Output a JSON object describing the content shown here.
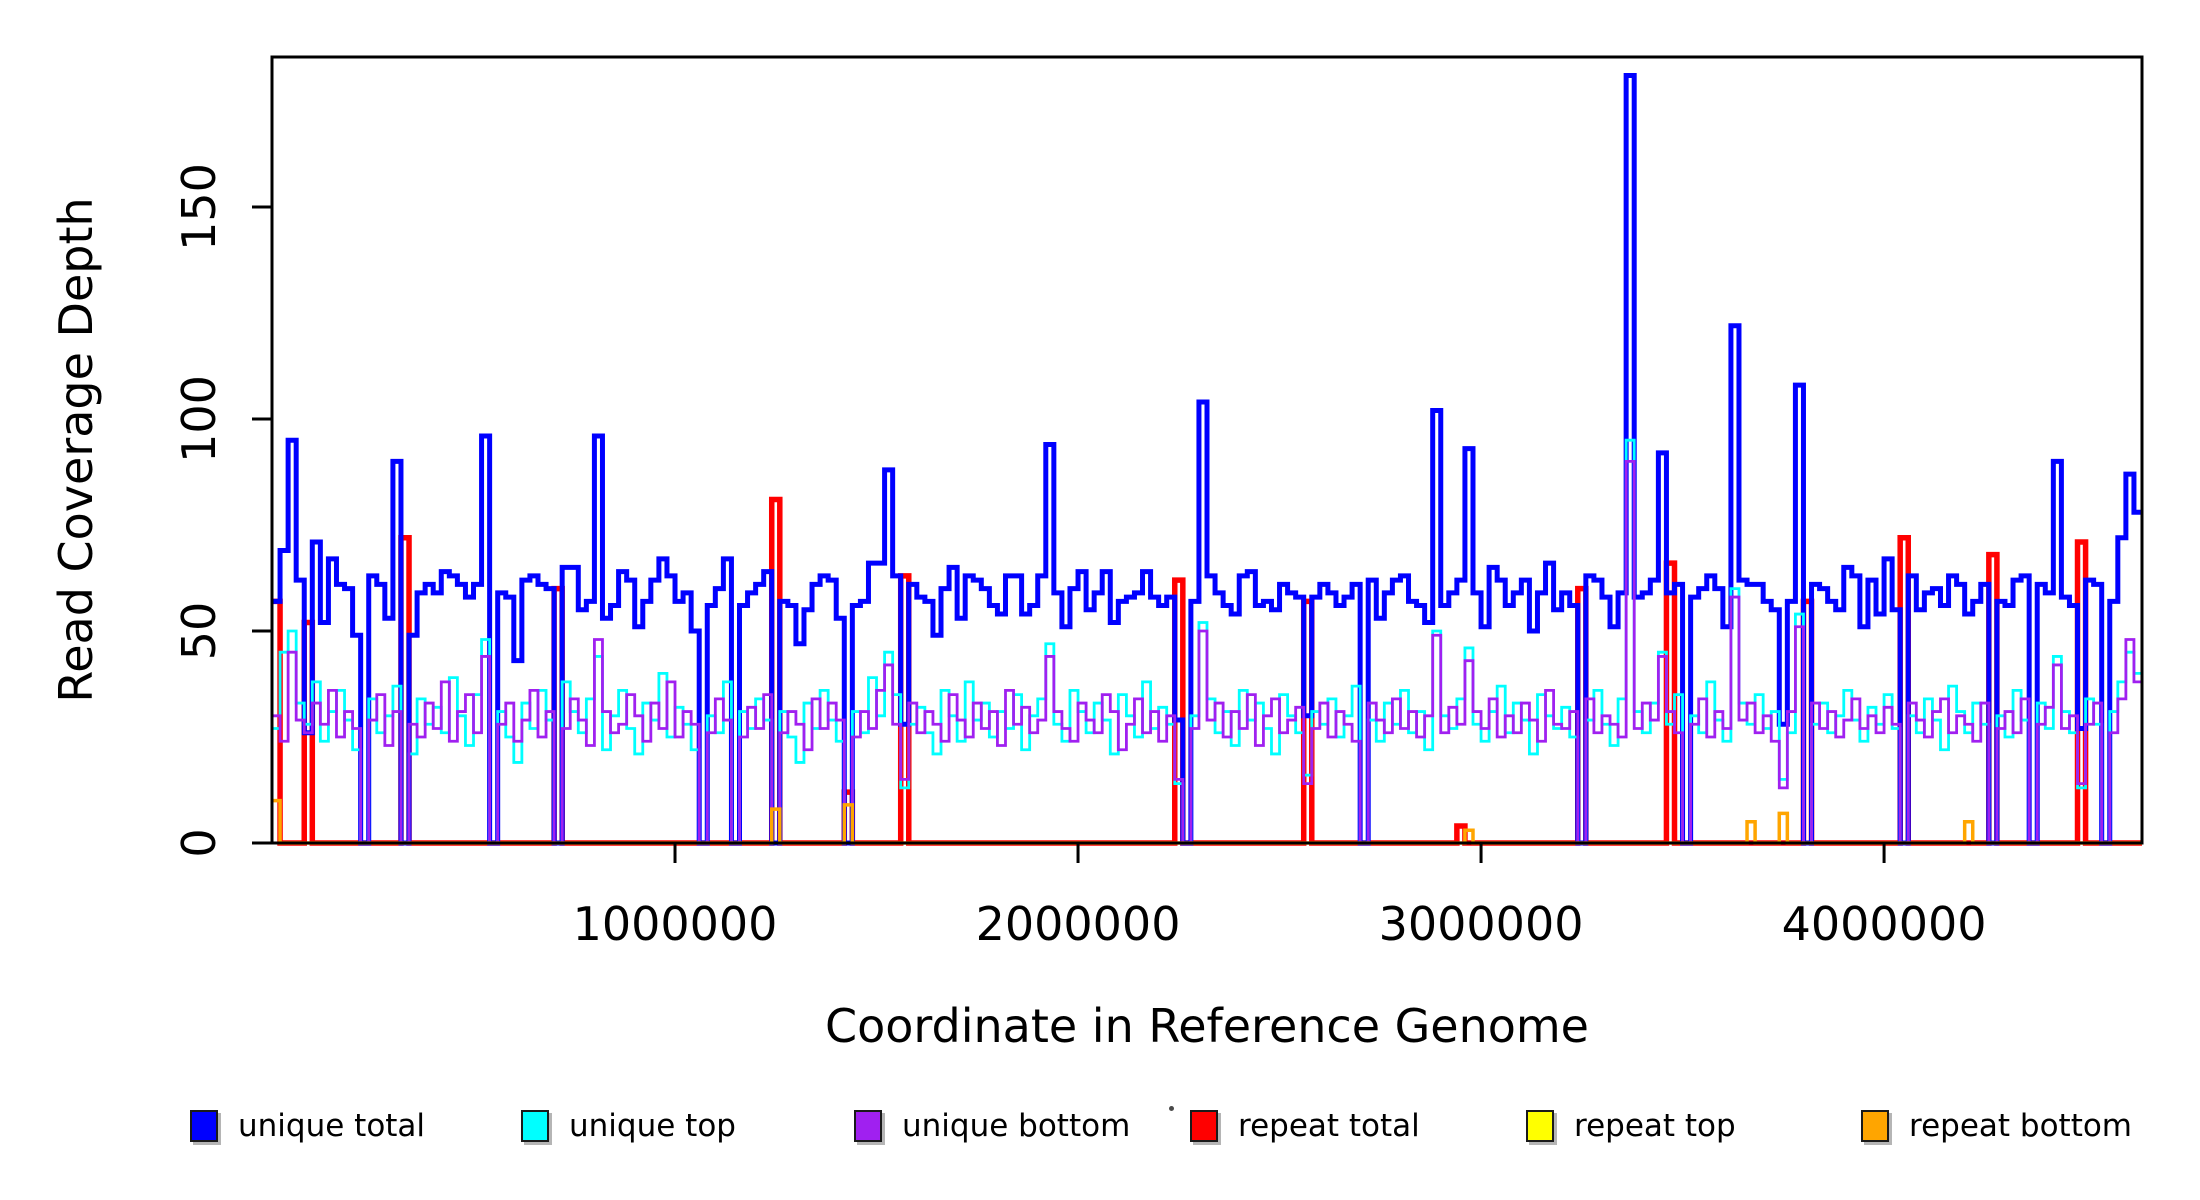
{
  "page": {
    "background": "#ffffff"
  },
  "chart_data": {
    "type": "line",
    "subtype": "step",
    "title": "",
    "xlabel": "Coordinate in Reference Genome",
    "ylabel": "Read Coverage Depth",
    "xlim": [
      0,
      4640000
    ],
    "ylim": [
      0,
      185
    ],
    "x_ticks": [
      1000000,
      2000000,
      3000000,
      4000000
    ],
    "y_ticks": [
      0,
      50,
      100,
      150
    ],
    "grid": false,
    "legend_position": "bottom",
    "axis_color": "#000000",
    "bin_size": 20000,
    "n_bins": 232,
    "series": [
      {
        "name": "repeat total",
        "color": "#FF0000",
        "line_width": 5.5,
        "default": 0,
        "values_sparse": {
          "0": 57,
          "4": 52,
          "16": 72,
          "35": 60,
          "62": 81,
          "71": 12,
          "78": 63,
          "112": 62,
          "128": 57,
          "147": 4,
          "162": 60,
          "173": 66,
          "190": 57,
          "202": 72,
          "213": 68,
          "224": 71
        }
      },
      {
        "name": "unique total",
        "color": "#0000FF",
        "line_width": 5,
        "values": [
          57,
          69,
          95,
          62,
          26,
          71,
          52,
          67,
          61,
          60,
          49,
          0,
          63,
          61,
          53,
          90,
          0,
          49,
          59,
          61,
          59,
          64,
          63,
          61,
          58,
          61,
          96,
          0,
          59,
          58,
          43,
          62,
          63,
          61,
          60,
          0,
          65,
          65,
          55,
          57,
          96,
          53,
          56,
          64,
          62,
          51,
          57,
          62,
          67,
          63,
          57,
          59,
          50,
          0,
          56,
          60,
          67,
          0,
          56,
          59,
          61,
          64,
          0,
          57,
          56,
          47,
          55,
          61,
          63,
          62,
          53,
          0,
          56,
          57,
          66,
          66,
          88,
          63,
          28,
          61,
          58,
          57,
          49,
          60,
          65,
          53,
          63,
          62,
          60,
          56,
          54,
          63,
          63,
          54,
          56,
          63,
          94,
          59,
          51,
          60,
          64,
          55,
          59,
          64,
          52,
          57,
          58,
          59,
          64,
          58,
          56,
          58,
          29,
          0,
          57,
          104,
          63,
          59,
          56,
          54,
          63,
          64,
          56,
          57,
          55,
          61,
          59,
          58,
          30,
          58,
          61,
          59,
          56,
          58,
          61,
          0,
          62,
          53,
          59,
          62,
          63,
          57,
          56,
          52,
          102,
          56,
          59,
          62,
          93,
          59,
          51,
          65,
          62,
          56,
          59,
          62,
          50,
          59,
          66,
          55,
          59,
          56,
          0,
          63,
          62,
          58,
          51,
          59,
          181,
          58,
          59,
          62,
          92,
          59,
          61,
          0,
          58,
          60,
          63,
          60,
          51,
          122,
          62,
          61,
          61,
          57,
          55,
          28,
          57,
          108,
          0,
          61,
          60,
          57,
          55,
          65,
          63,
          51,
          62,
          54,
          67,
          55,
          0,
          63,
          55,
          59,
          60,
          56,
          63,
          61,
          54,
          57,
          61,
          0,
          57,
          56,
          62,
          63,
          0,
          61,
          59,
          90,
          58,
          56,
          27,
          62,
          61,
          0,
          57,
          72,
          87,
          78
        ]
      },
      {
        "name": "unique top",
        "color": "#00FFFF",
        "line_width": 2.8,
        "values": [
          27,
          45,
          50,
          33,
          28,
          38,
          24,
          31,
          36,
          29,
          22,
          0,
          34,
          26,
          30,
          37,
          0,
          21,
          34,
          28,
          32,
          26,
          39,
          30,
          23,
          35,
          48,
          0,
          31,
          25,
          19,
          33,
          27,
          36,
          29,
          0,
          38,
          31,
          26,
          34,
          44,
          22,
          30,
          36,
          27,
          21,
          33,
          29,
          40,
          25,
          32,
          28,
          22,
          0,
          30,
          26,
          38,
          0,
          31,
          27,
          34,
          29,
          0,
          31,
          25,
          19,
          33,
          27,
          36,
          29,
          24,
          0,
          31,
          26,
          39,
          30,
          45,
          35,
          13,
          28,
          32,
          26,
          21,
          36,
          30,
          24,
          38,
          29,
          33,
          25,
          31,
          27,
          35,
          22,
          30,
          34,
          47,
          28,
          24,
          36,
          31,
          26,
          33,
          29,
          21,
          35,
          30,
          25,
          38,
          27,
          32,
          28,
          14,
          0,
          30,
          52,
          34,
          26,
          31,
          23,
          36,
          29,
          33,
          27,
          21,
          35,
          30,
          26,
          16,
          31,
          28,
          34,
          25,
          30,
          37,
          0,
          29,
          24,
          33,
          28,
          36,
          26,
          31,
          22,
          50,
          30,
          27,
          34,
          46,
          28,
          24,
          31,
          37,
          26,
          33,
          29,
          21,
          35,
          30,
          27,
          32,
          25,
          0,
          29,
          36,
          28,
          23,
          34,
          95,
          31,
          26,
          33,
          45,
          28,
          35,
          0,
          30,
          26,
          38,
          29,
          24,
          60,
          33,
          28,
          35,
          27,
          31,
          15,
          26,
          54,
          0,
          28,
          33,
          26,
          30,
          36,
          29,
          24,
          32,
          28,
          35,
          27,
          0,
          30,
          26,
          34,
          29,
          22,
          37,
          31,
          26,
          33,
          28,
          0,
          30,
          25,
          36,
          29,
          0,
          33,
          27,
          44,
          31,
          26,
          13,
          34,
          28,
          0,
          31,
          38,
          45,
          40
        ]
      },
      {
        "name": "unique bottom",
        "color": "#A020F0",
        "line_width": 2.8,
        "values": [
          30,
          24,
          45,
          29,
          26,
          33,
          28,
          36,
          25,
          31,
          27,
          0,
          29,
          35,
          23,
          31,
          0,
          28,
          25,
          33,
          27,
          38,
          24,
          31,
          35,
          26,
          44,
          0,
          28,
          33,
          24,
          29,
          36,
          25,
          31,
          0,
          27,
          34,
          29,
          23,
          48,
          31,
          26,
          28,
          35,
          30,
          24,
          33,
          27,
          38,
          25,
          31,
          28,
          0,
          26,
          34,
          29,
          0,
          25,
          32,
          27,
          35,
          0,
          26,
          31,
          28,
          22,
          34,
          27,
          33,
          29,
          0,
          25,
          31,
          27,
          36,
          42,
          28,
          15,
          33,
          26,
          31,
          28,
          24,
          35,
          29,
          25,
          33,
          27,
          31,
          23,
          36,
          28,
          32,
          26,
          29,
          44,
          31,
          27,
          24,
          33,
          29,
          26,
          35,
          31,
          22,
          28,
          34,
          26,
          31,
          24,
          30,
          15,
          0,
          27,
          50,
          29,
          33,
          25,
          31,
          27,
          35,
          23,
          30,
          34,
          26,
          29,
          32,
          14,
          27,
          33,
          25,
          31,
          28,
          24,
          0,
          33,
          29,
          26,
          34,
          27,
          31,
          25,
          30,
          49,
          26,
          32,
          28,
          43,
          31,
          27,
          34,
          25,
          30,
          26,
          33,
          29,
          24,
          36,
          28,
          27,
          31,
          0,
          34,
          26,
          30,
          28,
          25,
          90,
          27,
          33,
          29,
          44,
          31,
          26,
          0,
          28,
          34,
          25,
          31,
          27,
          58,
          29,
          33,
          26,
          30,
          24,
          13,
          31,
          51,
          0,
          33,
          27,
          31,
          25,
          29,
          34,
          27,
          30,
          26,
          32,
          28,
          0,
          33,
          29,
          25,
          31,
          34,
          26,
          30,
          28,
          24,
          33,
          0,
          27,
          31,
          26,
          34,
          0,
          28,
          32,
          42,
          27,
          30,
          14,
          28,
          33,
          0,
          26,
          34,
          48,
          38
        ]
      },
      {
        "name": "repeat top",
        "color": "#FFFF00",
        "line_width": 2.8,
        "default": 0,
        "values_sparse": {}
      },
      {
        "name": "repeat bottom",
        "color": "#FFA500",
        "line_width": 3.5,
        "default": 0,
        "values_sparse": {
          "0": 10,
          "62": 8,
          "71": 9,
          "148": 3,
          "183": 5,
          "187": 7,
          "210": 5
        }
      }
    ]
  },
  "legend": {
    "items": [
      {
        "label": "unique total",
        "color": "#0000FF"
      },
      {
        "label": "unique top",
        "color": "#00FFFF"
      },
      {
        "label": "unique bottom",
        "color": "#A020F0"
      },
      {
        "label": "repeat total",
        "color": "#FF0000"
      },
      {
        "label": "repeat top",
        "color": "#FFFF00"
      },
      {
        "label": "repeat bottom",
        "color": "#FFA500"
      }
    ]
  }
}
